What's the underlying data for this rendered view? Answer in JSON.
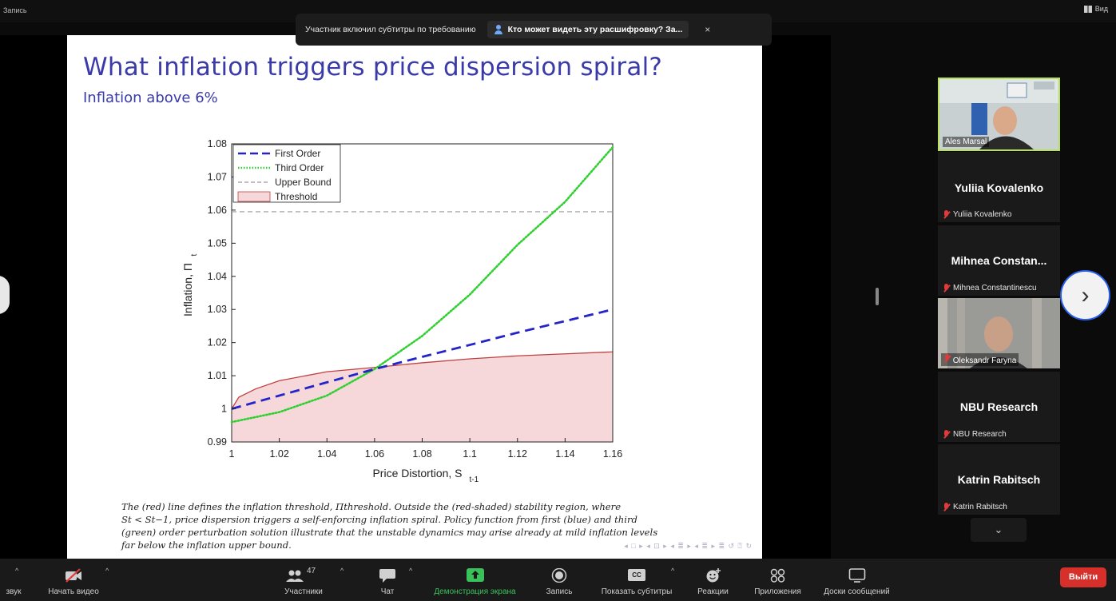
{
  "window": {
    "recording_label": "Запись",
    "view_label": "Вид"
  },
  "caption_bar": {
    "notice": "Участник включил субтитры по требованию",
    "who_can_see": "Кто может видеть эту расшифровку? За...",
    "close": "×"
  },
  "slide": {
    "title": "What inflation triggers price dispersion spiral?",
    "subtitle": "Inflation above 6%",
    "caption_lines": [
      "The (red) line defines the inflation threshold, Πthreshold. Outside the (red-shaded) stability region, where",
      "St < St−1, price dispersion triggers a self-enforcing inflation spiral. Policy function from first (blue) and third",
      "(green) order perturbation solution illustrate that the unstable dynamics may arise already at mild inflation levels",
      "far below the inflation upper bound."
    ],
    "nav_glyphs": "◂ □ ▸ ◂ ⊡ ▸ ◂ ≣ ▸ ◂ ≣ ▸  ≣  ↺ ⍰ ↻"
  },
  "chart_data": {
    "type": "line",
    "xlabel": "Price Distortion, S",
    "xlabel_sub": "t-1",
    "ylabel": "Inflation, Π",
    "ylabel_sub": "t",
    "xlim": [
      1,
      1.16
    ],
    "ylim": [
      0.99,
      1.08
    ],
    "x_ticks": [
      "1",
      "1.02",
      "1.04",
      "1.06",
      "1.08",
      "1.1",
      "1.12",
      "1.14",
      "1.16"
    ],
    "y_ticks": [
      "0.99",
      "1",
      "1.01",
      "1.02",
      "1.03",
      "1.04",
      "1.05",
      "1.06",
      "1.07",
      "1.08"
    ],
    "legend_position": "top-left",
    "series": [
      {
        "name": "First Order",
        "color": "#2424c8",
        "style": "dashed",
        "x": [
          1,
          1.02,
          1.04,
          1.06,
          1.08,
          1.1,
          1.12,
          1.14,
          1.16
        ],
        "y": [
          1.0,
          1.004,
          1.008,
          1.012,
          1.0157,
          1.0193,
          1.023,
          1.0265,
          1.03
        ]
      },
      {
        "name": "Third Order",
        "color": "#2fd02f",
        "style": "dotted",
        "x": [
          1,
          1.02,
          1.04,
          1.06,
          1.08,
          1.1,
          1.12,
          1.14,
          1.16
        ],
        "y": [
          0.996,
          0.999,
          1.004,
          1.012,
          1.022,
          1.0345,
          1.0495,
          1.0625,
          1.079
        ]
      },
      {
        "name": "Upper Bound",
        "color": "#999999",
        "style": "dashed",
        "x": [
          1,
          1.16
        ],
        "y": [
          1.0595,
          1.0595
        ]
      },
      {
        "name": "Threshold",
        "color": "#c04040",
        "style": "area",
        "x": [
          1,
          1.003,
          1.01,
          1.02,
          1.04,
          1.06,
          1.08,
          1.1,
          1.12,
          1.14,
          1.16
        ],
        "y": [
          1.0,
          1.0035,
          1.006,
          1.0085,
          1.0112,
          1.0125,
          1.0139,
          1.0151,
          1.016,
          1.0166,
          1.0172
        ]
      }
    ]
  },
  "participants": [
    {
      "type": "video",
      "name": "Ales Marsal"
    },
    {
      "type": "name",
      "display": "Yuliia Kovalenko",
      "name": "Yuliia Kovalenko"
    },
    {
      "type": "name",
      "display": "Mihnea Constan...",
      "name": "Mihnea Constantinescu"
    },
    {
      "type": "video",
      "name": "Oleksandr Faryna"
    },
    {
      "type": "name",
      "display": "NBU Research",
      "name": "NBU Research"
    },
    {
      "type": "name",
      "display": "Katrin Rabitsch",
      "name": "Katrin Rabitsch"
    }
  ],
  "toolbar": {
    "audio": "звук",
    "video": "Начать видео",
    "participants": "Участники",
    "participants_count": "47",
    "chat": "Чат",
    "share": "Демонстрация экрана",
    "record": "Запись",
    "captions": "Показать субтитры",
    "captions_badge": "CC",
    "reactions": "Реакции",
    "apps": "Приложения",
    "whiteboards": "Доски сообщений",
    "leave": "Выйти"
  },
  "colors": {
    "accent_green": "#39c25a",
    "leave_red": "#d7302a",
    "title_blue": "#3a3aa8"
  }
}
